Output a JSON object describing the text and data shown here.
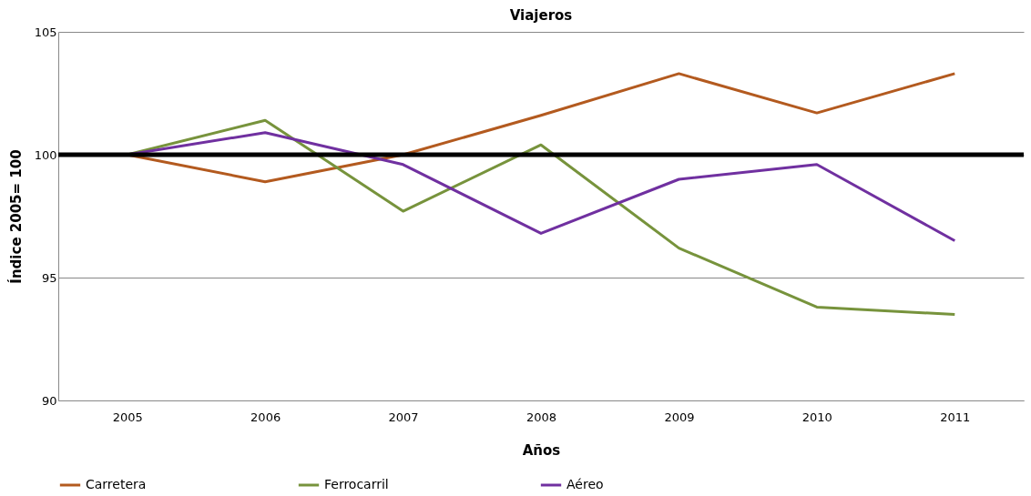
{
  "chart_data": {
    "type": "line",
    "title": "Viajeros",
    "xlabel": "Años",
    "ylabel": "Índice 2005= 100",
    "categories": [
      "2005",
      "2006",
      "2007",
      "2008",
      "2009",
      "2010",
      "2011"
    ],
    "series": [
      {
        "name": "Carretera",
        "color": "#b35a1f",
        "values": [
          100,
          98.9,
          100.0,
          101.6,
          103.3,
          101.7,
          103.3
        ]
      },
      {
        "name": "Ferrocarril",
        "color": "#77933c",
        "values": [
          100,
          101.4,
          97.7,
          100.4,
          96.2,
          93.8,
          93.5
        ]
      },
      {
        "name": "Aéreo",
        "color": "#7030a0",
        "values": [
          100,
          100.9,
          99.6,
          96.8,
          99.0,
          99.6,
          96.5
        ]
      }
    ],
    "ylim": [
      90,
      105
    ],
    "yticks": [
      90,
      95,
      100,
      105
    ],
    "grid": "y",
    "legend": "bottom",
    "marker": "none",
    "line_style": "solid",
    "ref_lines": [
      {
        "axis": "y",
        "value": 100,
        "label": null,
        "color": "#000000"
      }
    ]
  }
}
